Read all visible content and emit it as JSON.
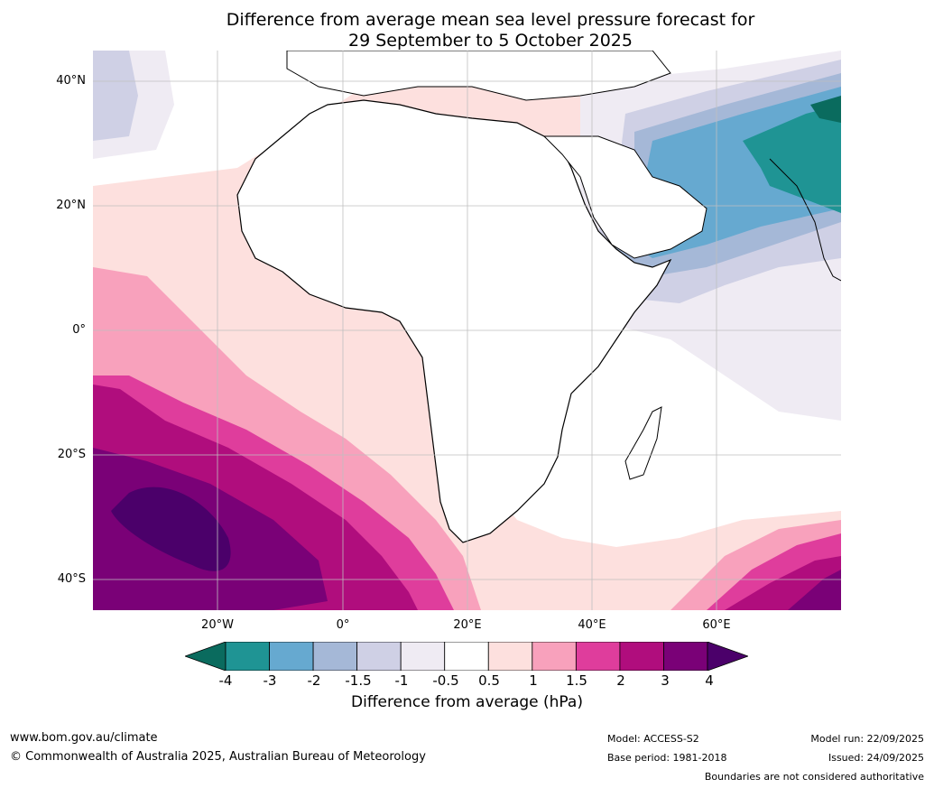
{
  "title_line1": "Difference from average mean sea level pressure forecast for",
  "title_line2": "29 September to 5 October 2025",
  "lat_labels": [
    "40°N",
    "20°N",
    "0°",
    "20°S",
    "40°S"
  ],
  "lon_labels": [
    "20°W",
    "0°",
    "20°E",
    "40°E",
    "60°E"
  ],
  "colorbar": {
    "ticks": [
      "-4",
      "-3",
      "-2",
      "-1.5",
      "-1",
      "-0.5",
      "0.5",
      "1",
      "1.5",
      "2",
      "3",
      "4"
    ],
    "colors": [
      "#0a6b5e",
      "#1f9494",
      "#66a9d0",
      "#a5b8d7",
      "#cfd0e5",
      "#efebf3",
      "#ffffff",
      "#fde0de",
      "#f8a1bc",
      "#df3d9c",
      "#b00d7d",
      "#7a0177",
      "#4b006a"
    ],
    "label": "Difference from average (hPa)"
  },
  "footer": {
    "website": "www.bom.gov.au/climate",
    "copyright": "© Commonwealth of Australia 2025, Australian Bureau of Meteorology",
    "model": "Model: ACCESS-S2",
    "base_period": "Base period: 1981-2018",
    "model_run": "Model run: 22/09/2025",
    "issued": "Issued: 24/09/2025",
    "disclaimer": "Boundaries are not considered authoritative"
  }
}
